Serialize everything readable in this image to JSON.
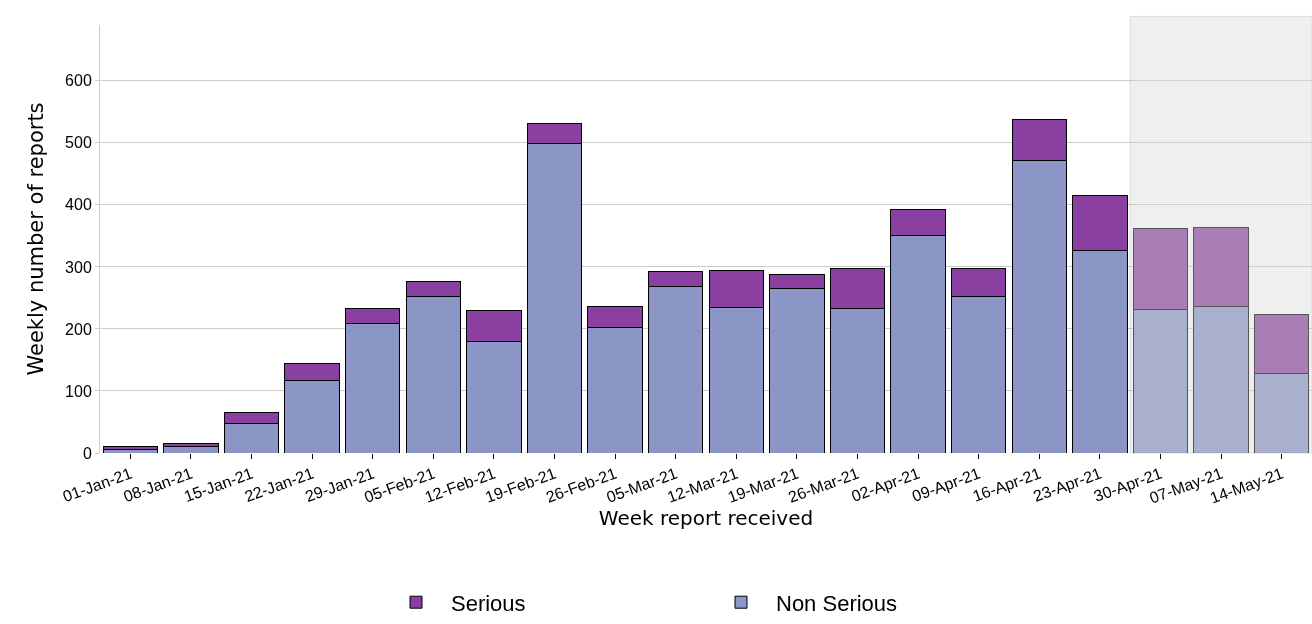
{
  "chart_data": {
    "type": "bar",
    "stacked": true,
    "xlabel": "Week report received",
    "ylabel": "Weekly number of reports",
    "categories": [
      "01-Jan-21",
      "08-Jan-21",
      "15-Jan-21",
      "22-Jan-21",
      "29-Jan-21",
      "05-Feb-21",
      "12-Feb-21",
      "19-Feb-21",
      "26-Feb-21",
      "05-Mar-21",
      "12-Mar-21",
      "19-Mar-21",
      "26-Mar-21",
      "02-Apr-21",
      "09-Apr-21",
      "16-Apr-21",
      "23-Apr-21",
      "30-Apr-21",
      "07-May-21",
      "14-May-21"
    ],
    "series": [
      {
        "name": "Non Serious",
        "color": "#8b96c6",
        "values": [
          5,
          11,
          47,
          117,
          208,
          253,
          180,
          499,
          202,
          268,
          234,
          266,
          233,
          351,
          253,
          472,
          326,
          231,
          236,
          128
        ]
      },
      {
        "name": "Serious",
        "color": "#8a40a0",
        "values": [
          5,
          5,
          18,
          27,
          25,
          24,
          49,
          32,
          34,
          25,
          61,
          21,
          65,
          42,
          44,
          66,
          89,
          131,
          128,
          95
        ]
      }
    ],
    "ylim": [
      0,
      690
    ],
    "yticks": [
      0,
      100,
      200,
      300,
      400,
      500,
      600
    ],
    "grid": "y",
    "legend": "bottom",
    "bands": [
      {
        "axis": "x",
        "from": "30-Apr-21",
        "to": "14-May-21",
        "color": "#d8d8d8"
      }
    ]
  }
}
